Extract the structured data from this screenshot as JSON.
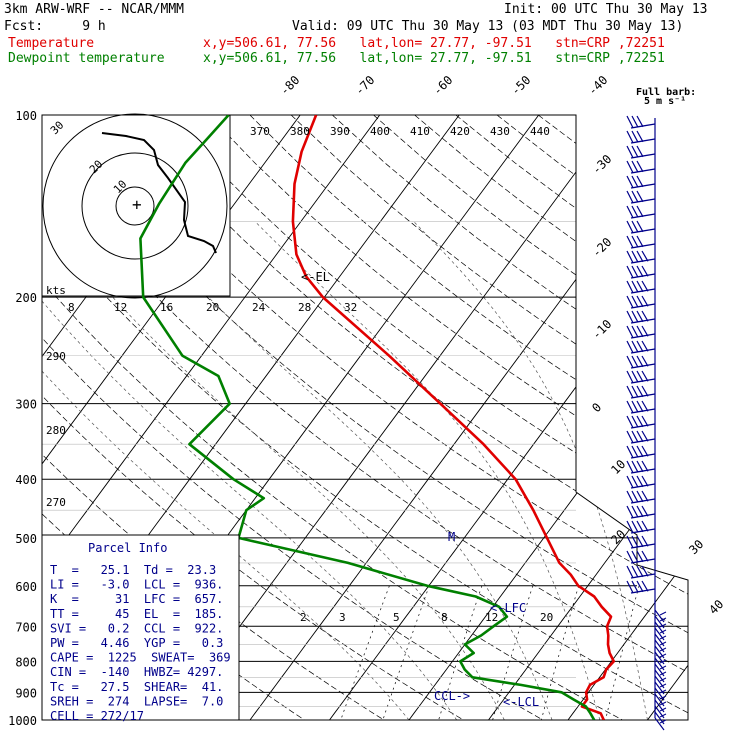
{
  "header": {
    "model": "3km ARW-WRF -- NCAR/MMM",
    "init": "Init: 00 UTC Thu 30 May 13",
    "fcst": "Fcst:     9 h",
    "valid": "Valid: 09 UTC Thu 30 May 13 (03 MDT Thu 30 May 13)",
    "temp_label": "Temperature",
    "temp_info": "x,y=506.61, 77.56   lat,lon= 27.77, -97.51   stn=CRP ,72251",
    "dew_label": "Dewpoint temperature",
    "dew_info": "x,y=506.61, 77.56   lat,lon= 27.77, -97.51   stn=CRP ,72251"
  },
  "barb_legend": {
    "line1": "Full barb:",
    "line2": "5 m s⁻¹"
  },
  "hodograph": {
    "kts_label": "kts",
    "ring_labels": [
      "10",
      "20",
      "30"
    ]
  },
  "parcel_info": {
    "title": "Parcel Info",
    "rows": [
      "T  =   25.1  Td =  23.3",
      "LI =   -3.0  LCL =  936.",
      "K  =     31  LFC =  657.",
      "TT =     45  EL  =  185.",
      "SVI =   0.2  CCL =  922.",
      "PW =   4.46  YGP =   0.3",
      "CAPE =  1225  SWEAT=  369",
      "CIN =  -140  HWBZ= 4297.",
      "Tc =   27.5  SHEAR=  41.",
      "SREH =  274  LAPSE=  7.0",
      "CELL = 272/17"
    ]
  },
  "annotations": {
    "el": "<-EL",
    "lfc": "<-LFC",
    "lcl": "<-LCL",
    "ccl": "CCL->",
    "m": "M"
  },
  "chart_data": {
    "type": "line",
    "title": "",
    "ylabel": "",
    "pressure_levels": [
      100,
      200,
      300,
      400,
      500,
      600,
      700,
      800,
      900,
      1000
    ],
    "isotherm_labels": [
      "-80",
      "-70",
      "-60",
      "-50",
      "-40",
      "-30",
      "-20",
      "-10",
      "0",
      "10",
      "20",
      "30",
      "40"
    ],
    "theta_labels": [
      "370",
      "380",
      "390",
      "400",
      "410",
      "420",
      "430",
      "440"
    ],
    "mixing_ratio_top_labels": [
      "8",
      "12",
      "16",
      "20",
      "24",
      "28",
      "32"
    ],
    "mixing_ratio_bottom_labels": [
      "2",
      "3",
      "5",
      "8",
      "12",
      "20"
    ],
    "dry_adiabat_labels": [
      "290",
      "280",
      "270"
    ],
    "series": [
      {
        "name": "Temperature",
        "color": "#e00000",
        "points": [
          [
            1000,
            24.5
          ],
          [
            975,
            23.5
          ],
          [
            950,
            20.5
          ],
          [
            925,
            20.5
          ],
          [
            900,
            19.7
          ],
          [
            875,
            19.5
          ],
          [
            850,
            20.5
          ],
          [
            825,
            20.1
          ],
          [
            800,
            20.3
          ],
          [
            775,
            19.0
          ],
          [
            750,
            18.0
          ],
          [
            725,
            17.2
          ],
          [
            700,
            16.2
          ],
          [
            675,
            15.8
          ],
          [
            650,
            13.7
          ],
          [
            625,
            11.8
          ],
          [
            600,
            8.8
          ],
          [
            575,
            6.8
          ],
          [
            550,
            4.3
          ],
          [
            500,
            0.4
          ],
          [
            450,
            -3.9
          ],
          [
            400,
            -9.0
          ],
          [
            350,
            -16.3
          ],
          [
            300,
            -25.5
          ],
          [
            250,
            -36.4
          ],
          [
            200,
            -50.2
          ],
          [
            185,
            -54.2
          ],
          [
            170,
            -57.5
          ],
          [
            150,
            -61.0
          ],
          [
            130,
            -64.3
          ],
          [
            115,
            -66.4
          ],
          [
            100,
            -68.0
          ]
        ]
      },
      {
        "name": "Dewpoint temperature",
        "color": "#008000",
        "points": [
          [
            1000,
            23.3
          ],
          [
            975,
            22.2
          ],
          [
            950,
            21.0
          ],
          [
            925,
            18.8
          ],
          [
            900,
            16.6
          ],
          [
            875,
            10.8
          ],
          [
            850,
            4.0
          ],
          [
            825,
            2.3
          ],
          [
            800,
            1.0
          ],
          [
            775,
            1.9
          ],
          [
            750,
            0.0
          ],
          [
            725,
            1.2
          ],
          [
            700,
            1.9
          ],
          [
            675,
            2.7
          ],
          [
            650,
            0.8
          ],
          [
            625,
            -3.1
          ],
          [
            600,
            -10.2
          ],
          [
            550,
            -22.3
          ],
          [
            500,
            -38.4
          ],
          [
            450,
            -40.0
          ],
          [
            430,
            -38.9
          ],
          [
            400,
            -44.5
          ],
          [
            350,
            -53.3
          ],
          [
            300,
            -52.0
          ],
          [
            270,
            -56.0
          ],
          [
            250,
            -62.4
          ],
          [
            200,
            -72.8
          ],
          [
            160,
            -78.6
          ],
          [
            140,
            -79.5
          ],
          [
            120,
            -80.0
          ],
          [
            110,
            -79.5
          ],
          [
            100,
            -79.0
          ]
        ]
      }
    ],
    "wind_barbs_color": "#00008b"
  }
}
